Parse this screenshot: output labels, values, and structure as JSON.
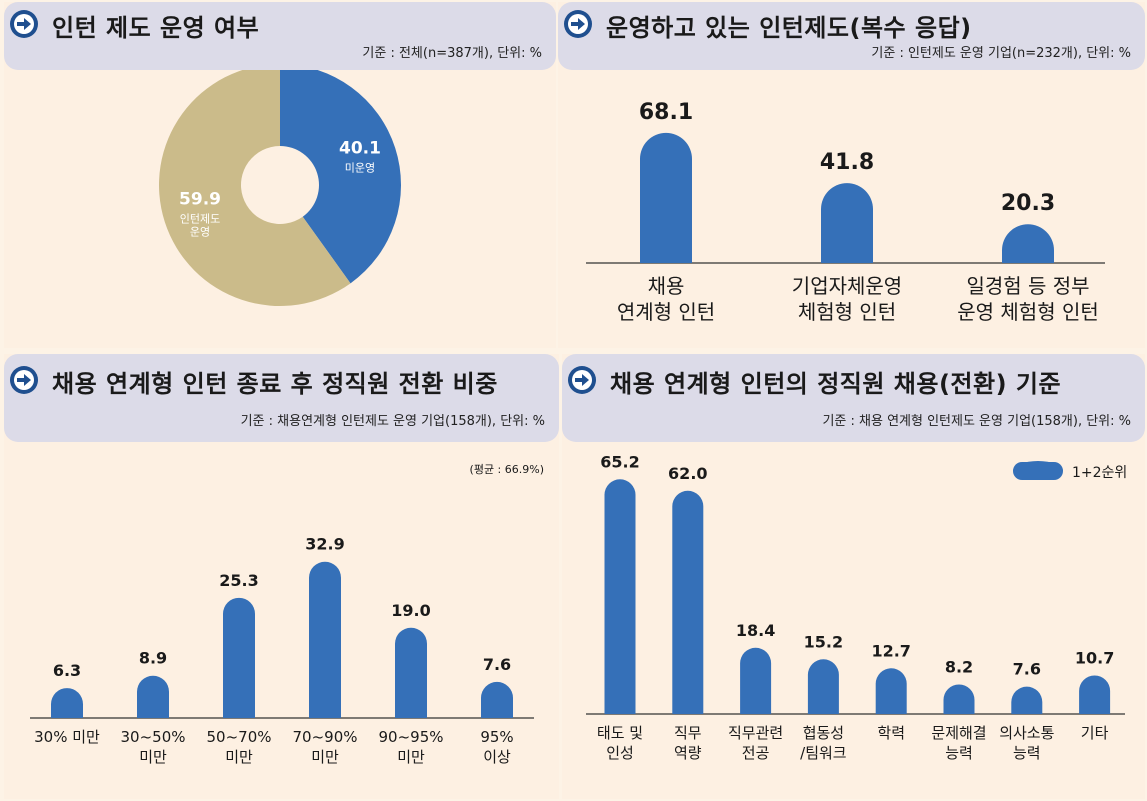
{
  "panel1": {
    "title": "인턴 제도 운영 여부",
    "basis": "기준 : 전체(n=387개), 단위: %",
    "chart_data": {
      "type": "pie",
      "slices": [
        {
          "name": "미운영",
          "value": 40.1,
          "value_label": "40.1",
          "color": "#3570b8"
        },
        {
          "name": "인턴제도\n운영",
          "value": 59.9,
          "value_label": "59.9",
          "color": "#cbbb8a"
        }
      ]
    }
  },
  "panel2": {
    "title": "운영하고 있는 인턴제도(복수 응답)",
    "basis": "기준 : 인턴제도 운영 기업(n=232개), 단위: %",
    "chart_data": {
      "type": "bar",
      "categories": [
        "채용\n연계형 인턴",
        "기업자체운영\n체험형 인턴",
        "일경험 등 정부\n운영 체험형 인턴"
      ],
      "values": [
        68.1,
        41.8,
        20.3
      ],
      "value_labels": [
        "68.1",
        "41.8",
        "20.3"
      ],
      "color": "#3570b8"
    }
  },
  "panel3": {
    "title": "채용 연계형 인턴 종료 후 정직원 전환 비중",
    "basis": "기준 : 채용연계형 인턴제도 운영 기업(158개), 단위: %",
    "note": "(평균 : 66.9%)",
    "chart_data": {
      "type": "bar",
      "categories": [
        "30% 미만",
        "30~50%\n미만",
        "50~70%\n미만",
        "70~90%\n미만",
        "90~95%\n미만",
        "95%\n이상"
      ],
      "values": [
        6.3,
        8.9,
        25.3,
        32.9,
        19.0,
        7.6
      ],
      "value_labels": [
        "6.3",
        "8.9",
        "25.3",
        "32.9",
        "19.0",
        "7.6"
      ],
      "color": "#3570b8"
    }
  },
  "panel4": {
    "title": "채용 연계형 인턴의 정직원 채용(전환) 기준",
    "basis": "기준 : 채용 연계형 인턴제도 운영 기업(158개), 단위: %",
    "chart_data": {
      "type": "bar",
      "legend": "1+2순위",
      "legend_position": "top-right",
      "categories": [
        "태도 및\n인성",
        "직무\n역량",
        "직무관련\n전공",
        "협동성\n/팀워크",
        "학력",
        "문제해결\n능력",
        "의사소통\n능력",
        "기타"
      ],
      "values": [
        65.2,
        62.0,
        18.4,
        15.2,
        12.7,
        8.2,
        7.6,
        10.7
      ],
      "value_labels": [
        "65.2",
        "62.0",
        "18.4",
        "15.2",
        "12.7",
        "8.2",
        "7.6",
        "10.7"
      ],
      "color": "#3570b8"
    }
  }
}
